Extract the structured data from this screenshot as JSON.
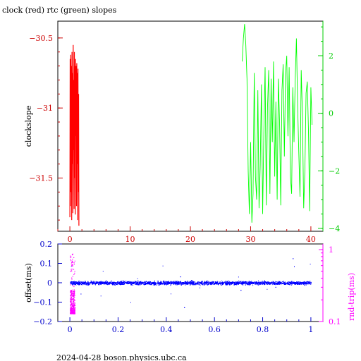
{
  "page": {
    "title": "clock (red) rtc (green) slopes",
    "footer": "2024-04-28 boson.physics.ubc.ca"
  },
  "chart_data": [
    {
      "type": "line",
      "ylabel": "clockslope",
      "y2label": "",
      "xlim": [
        -2,
        42
      ],
      "xticks": [
        "0",
        "10",
        "20",
        "30",
        "40"
      ],
      "xtick_values": [
        0,
        10,
        20,
        30,
        40
      ],
      "ylim": [
        -31.88,
        -30.38
      ],
      "yticks": [
        "-30.5",
        "-31",
        "-31.5"
      ],
      "ytick_values": [
        -30.5,
        -31.0,
        -31.5
      ],
      "y2lim": [
        -4.1,
        3.2
      ],
      "y2ticks": [
        "2",
        "0",
        "-2",
        "-4"
      ],
      "y2tick_values": [
        2,
        0,
        -2,
        -4
      ],
      "colors": {
        "axis_left": "#cc0000",
        "axis_right": "#00cc00",
        "axis_x": "#cc0000"
      },
      "series": [
        {
          "color": "#ff0000",
          "axis": "left",
          "x": [
            0.0,
            0.05,
            0.1,
            0.15,
            0.2,
            0.25,
            0.3,
            0.35,
            0.4,
            0.45,
            0.5,
            0.55,
            0.6,
            0.65,
            0.7,
            0.75,
            0.8,
            0.85,
            0.9,
            0.95,
            1.0,
            1.05,
            1.1,
            1.15,
            1.2,
            1.25,
            1.3,
            1.35,
            1.4,
            1.45,
            1.5
          ],
          "y": [
            -31.78,
            -30.65,
            -31.7,
            -30.62,
            -31.6,
            -30.7,
            -31.8,
            -30.6,
            -31.4,
            -30.75,
            -31.75,
            -30.55,
            -31.3,
            -30.8,
            -31.72,
            -30.6,
            -31.5,
            -30.7,
            -31.76,
            -30.65,
            -31.2,
            -30.7,
            -31.7,
            -30.68,
            -31.4,
            -30.75,
            -31.8,
            -30.72,
            -31.6,
            -30.9,
            -31.84
          ]
        },
        {
          "color": "#00ff00",
          "axis": "right",
          "x": [
            28.6,
            28.8,
            29.0,
            29.2,
            29.4,
            29.6,
            29.8,
            30.0,
            30.2,
            30.4,
            30.6,
            30.8,
            31.0,
            31.2,
            31.4,
            31.6,
            31.8,
            32.0,
            32.2,
            32.4,
            32.6,
            32.8,
            33.0,
            33.2,
            33.4,
            33.6,
            33.8,
            34.0,
            34.2,
            34.4,
            34.6,
            34.8,
            35.0,
            35.2,
            35.4,
            35.6,
            35.8,
            36.0,
            36.2,
            36.4,
            36.6,
            36.8,
            37.0,
            37.2,
            37.4,
            37.6,
            37.8,
            38.0,
            38.2,
            38.4,
            38.6,
            38.8,
            39.0,
            39.2,
            39.4,
            39.6,
            39.8,
            40.0,
            40.2
          ],
          "y": [
            1.8,
            2.6,
            3.1,
            2.4,
            1.2,
            -2.0,
            -3.5,
            -1.0,
            -3.8,
            -2.8,
            1.4,
            -2.2,
            -3.0,
            0.8,
            -3.3,
            -1.8,
            1.0,
            -3.5,
            -0.5,
            1.6,
            -3.2,
            0.2,
            1.5,
            -2.8,
            1.2,
            -1.0,
            1.8,
            -2.2,
            0.4,
            -3.0,
            1.2,
            -0.3,
            -3.2,
            0.8,
            1.7,
            -1.5,
            1.4,
            2.0,
            -0.8,
            1.6,
            -2.2,
            -2.8,
            0.9,
            -1.0,
            1.2,
            2.6,
            0.3,
            -1.4,
            -2.9,
            1.5,
            0.0,
            -3.3,
            -2.0,
            0.7,
            1.1,
            -0.6,
            -3.4,
            0.9,
            -0.4
          ]
        }
      ]
    },
    {
      "type": "scatter",
      "ylabel": "offset(ms)",
      "y2label": "rnd-trip(ms)",
      "xlim": [
        -0.05,
        1.05
      ],
      "xticks": [
        "0",
        "0.2",
        "0.4",
        "0.6",
        "0.8",
        "1"
      ],
      "xtick_values": [
        0,
        0.2,
        0.4,
        0.6,
        0.8,
        1.0
      ],
      "ylim": [
        -0.2,
        0.2
      ],
      "yticks": [
        "0.2",
        "0.1",
        "0",
        "-0.1",
        "-0.2"
      ],
      "ytick_values": [
        0.2,
        0.1,
        0.0,
        -0.1,
        -0.2
      ],
      "y2scale": "log",
      "y2lim": [
        0.1,
        1.2
      ],
      "y2ticks": [
        "1",
        "0.1"
      ],
      "y2tick_values": [
        1,
        0.1
      ],
      "colors": {
        "axis_left": "#0000cc",
        "axis_right": "#ff00ff",
        "offset_points": "#0000ff",
        "roundtrip_points": "#ff00ff"
      },
      "series": [
        {
          "name": "offset(ms)",
          "color": "#0000ff",
          "axis": "left",
          "x_range": [
            0,
            1
          ],
          "y_center": 0.0,
          "y_band": [
            -0.04,
            0.035
          ]
        },
        {
          "name": "rnd-trip(ms)",
          "color": "#ff00ff",
          "axis": "right",
          "x_range": [
            0,
            0.02
          ],
          "y_band": [
            0.13,
            0.9
          ]
        }
      ]
    }
  ]
}
